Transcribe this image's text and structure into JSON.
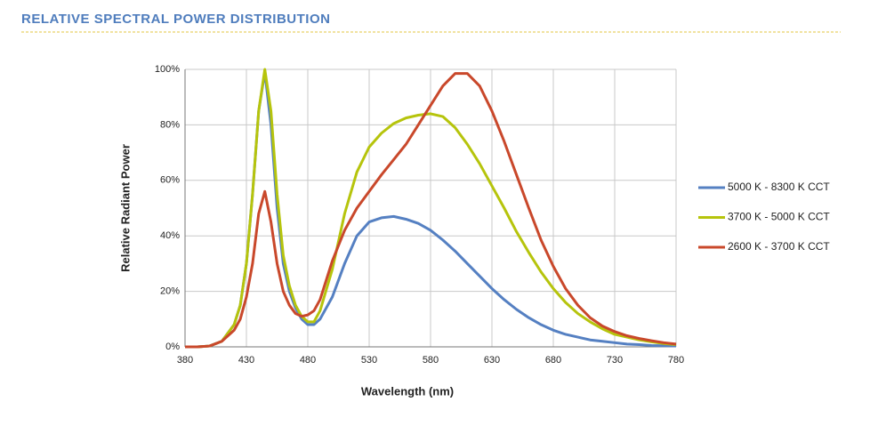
{
  "chart_data": {
    "type": "line",
    "title": "RELATIVE SPECTRAL POWER DISTRIBUTION",
    "y_label": "Relative Radiant Power",
    "x_label": "Wavelength (nm)",
    "x": [
      380,
      390,
      400,
      410,
      420,
      425,
      430,
      435,
      440,
      445,
      450,
      455,
      460,
      465,
      470,
      475,
      480,
      485,
      490,
      500,
      510,
      520,
      530,
      540,
      550,
      560,
      570,
      580,
      590,
      600,
      610,
      620,
      630,
      640,
      650,
      660,
      670,
      680,
      690,
      700,
      710,
      720,
      730,
      740,
      750,
      760,
      770,
      780
    ],
    "series": [
      {
        "name": "5000 K - 8300 K CCT",
        "color": "#5580c2",
        "values": [
          0,
          0,
          0.3,
          2,
          8,
          15,
          30,
          55,
          85,
          99,
          80,
          50,
          30,
          20,
          14,
          10,
          8,
          8,
          10,
          18,
          30,
          40,
          45,
          46.5,
          47,
          46,
          44.5,
          42,
          38.5,
          34.5,
          30,
          25.5,
          21,
          17,
          13.5,
          10.5,
          8,
          6,
          4.5,
          3.5,
          2.5,
          2,
          1.5,
          1,
          0.8,
          0.5,
          0.4,
          0.3
        ]
      },
      {
        "name": "3700 K - 5000 K CCT",
        "color": "#b6c40c",
        "values": [
          0,
          0,
          0.3,
          2,
          8,
          15,
          30,
          55,
          85,
          100,
          85,
          55,
          33,
          22,
          15,
          11,
          9,
          9,
          13,
          28,
          48,
          63,
          72,
          77,
          80.5,
          82.5,
          83.5,
          84,
          83,
          79,
          73,
          66,
          58,
          50,
          41.5,
          34,
          27,
          21,
          16,
          12,
          9,
          6.5,
          4.5,
          3.5,
          2.5,
          1.8,
          1.2,
          0.8
        ]
      },
      {
        "name": "2600 K - 3700 K CCT",
        "color": "#c9482b",
        "values": [
          0,
          0,
          0.3,
          2,
          6,
          10,
          18,
          30,
          48,
          56,
          45,
          30,
          20,
          15,
          12,
          11,
          11.5,
          13,
          17,
          31,
          42,
          50,
          56,
          62,
          67.5,
          73,
          80,
          87,
          94,
          98.5,
          98.5,
          94,
          85,
          74,
          62,
          50,
          38.5,
          29,
          21,
          15,
          10.5,
          7.5,
          5.5,
          4,
          3,
          2.2,
          1.5,
          1
        ]
      }
    ],
    "xlim": [
      380,
      780
    ],
    "xticks": [
      380,
      430,
      480,
      530,
      580,
      630,
      680,
      730,
      780
    ],
    "ylim": [
      0,
      100
    ],
    "yticks": [
      {
        "value": 0,
        "label": "0%"
      },
      {
        "value": 20,
        "label": "20%"
      },
      {
        "value": 40,
        "label": "40%"
      },
      {
        "value": 60,
        "label": "60%"
      },
      {
        "value": 80,
        "label": "80%"
      },
      {
        "value": 100,
        "label": "100%"
      }
    ],
    "grid": true,
    "legend": "right"
  }
}
